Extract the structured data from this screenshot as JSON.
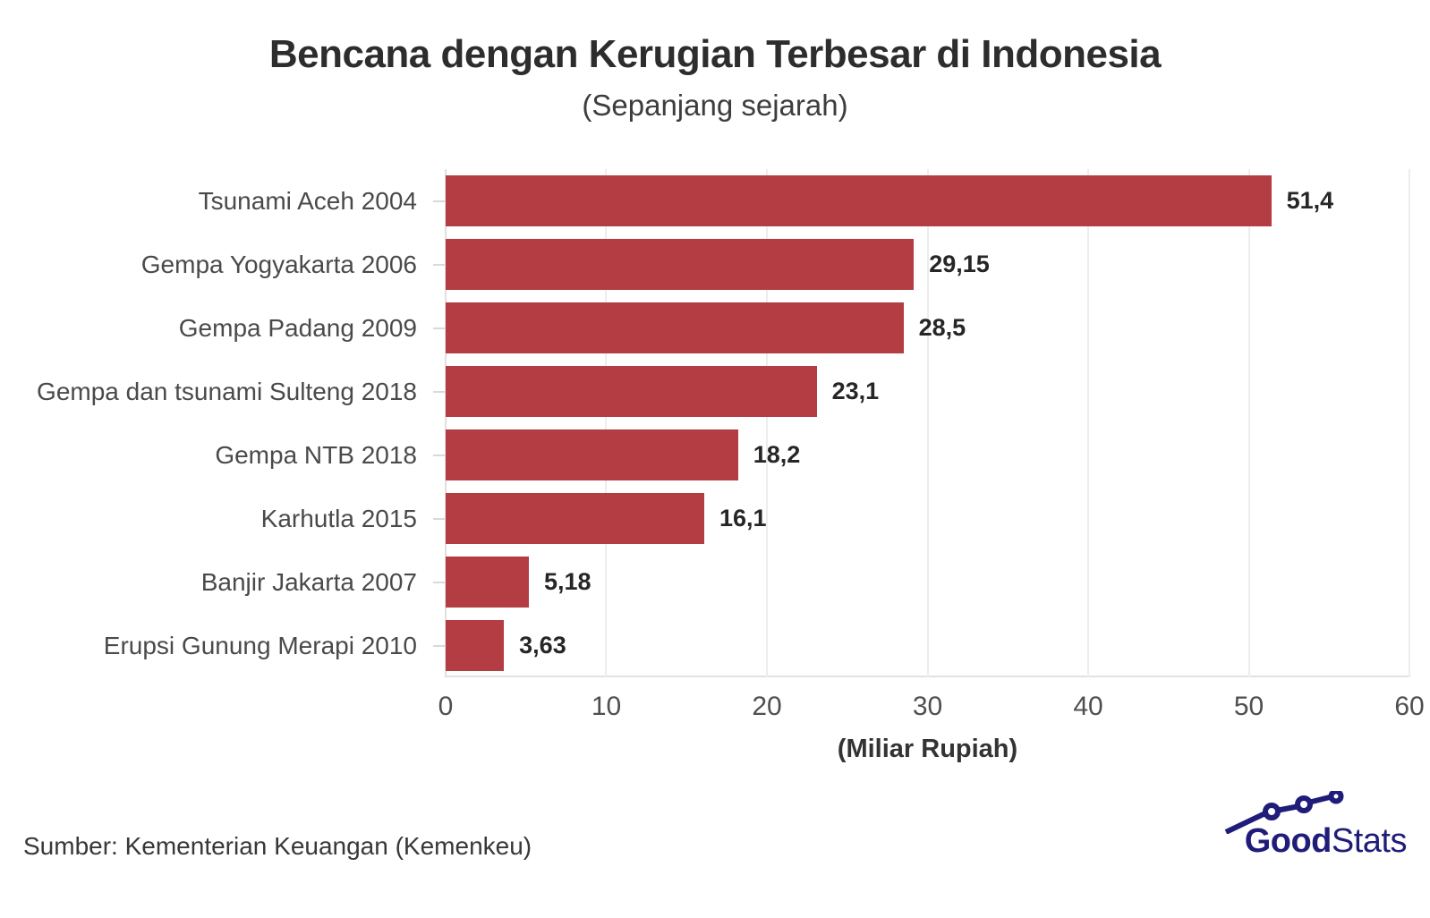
{
  "header": {
    "title": "Bencana dengan Kerugian Terbesar di Indonesia",
    "subtitle": "(Sepanjang sejarah)"
  },
  "chart_data": {
    "type": "bar",
    "orientation": "horizontal",
    "title": "Bencana dengan Kerugian Terbesar di Indonesia",
    "subtitle": "(Sepanjang sejarah)",
    "categories": [
      "Tsunami Aceh 2004",
      "Gempa Yogyakarta 2006",
      "Gempa Padang 2009",
      "Gempa dan tsunami Sulteng 2018",
      "Gempa NTB 2018",
      "Karhutla 2015",
      "Banjir Jakarta 2007",
      "Erupsi Gunung Merapi 2010"
    ],
    "values": [
      51.4,
      29.15,
      28.5,
      23.1,
      18.2,
      16.1,
      5.18,
      3.63
    ],
    "value_labels": [
      "51,4",
      "29,15",
      "28,5",
      "23,1",
      "18,2",
      "16,1",
      "5,18",
      "3,63"
    ],
    "xlabel": "(Miliar Rupiah)",
    "xlim": [
      0,
      60
    ],
    "xticks": [
      0,
      10,
      20,
      30,
      40,
      50,
      60
    ],
    "xtick_labels": [
      "0",
      "10",
      "20",
      "30",
      "40",
      "50",
      "60"
    ],
    "grid": "vertical-light",
    "legend": "none",
    "bar_color": "#b33d42"
  },
  "footer": {
    "source": "Sumber: Kementerian Keuangan (Kemenkeu)",
    "logo": {
      "bold": "Good",
      "light": "Stats",
      "color": "#201d7a",
      "icon": "trend-line-icon"
    }
  },
  "colors": {
    "background": "#ffffff",
    "bar": "#b33d42",
    "gridline": "#ededed",
    "axis": "#e0e0e0",
    "title": "#2d2d2d",
    "category_label": "#4a4a4a",
    "value_label": "#262626",
    "logo_navy": "#201d7a"
  }
}
